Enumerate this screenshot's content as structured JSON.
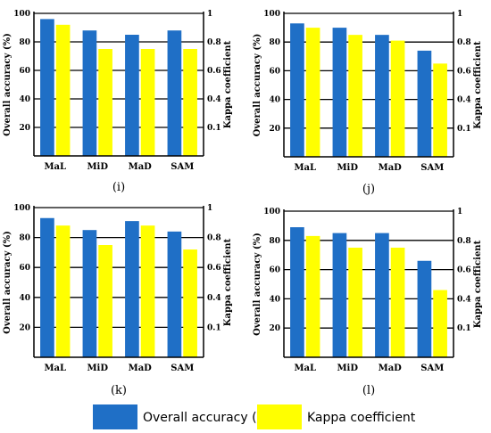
{
  "colors": {
    "oa": "#1f6fc6",
    "kappa": "#ffff00"
  },
  "legend": {
    "oa_label": "Overall accuracy (%)",
    "kappa_label": "Kappa coefficient"
  },
  "chart_data": [
    {
      "type": "bar",
      "panel_label": "(i)",
      "categories": [
        "MaL",
        "MiD",
        "MaD",
        "SAM"
      ],
      "ylabel": "Overall accuracy (%)",
      "y2label": "Kappa coefficient",
      "ylim": [
        0,
        100
      ],
      "y2lim": [
        0,
        1
      ],
      "yticks": [
        "20",
        "40",
        "60",
        "80",
        "100"
      ],
      "y2ticks": [
        "0.1",
        "0.4",
        "0.6",
        "0.8",
        "1"
      ],
      "series": [
        {
          "name": "Overall accuracy (%)",
          "values": [
            96,
            88,
            85,
            88
          ]
        },
        {
          "name": "Kappa coefficient",
          "values": [
            0.92,
            0.75,
            0.75,
            0.75
          ]
        }
      ]
    },
    {
      "type": "bar",
      "panel_label": "(j)",
      "categories": [
        "MaL",
        "MiD",
        "MaD",
        "SAM"
      ],
      "ylabel": "Overall accuracy (%)",
      "y2label": "Kappa coefficient",
      "ylim": [
        0,
        100
      ],
      "y2lim": [
        0,
        1
      ],
      "yticks": [
        "20",
        "40",
        "60",
        "80",
        "100"
      ],
      "y2ticks": [
        "0.1",
        "0.4",
        "0.6",
        "0.8",
        "1"
      ],
      "series": [
        {
          "name": "Overall accuracy (%)",
          "values": [
            93,
            90,
            85,
            74
          ]
        },
        {
          "name": "Kappa coefficient",
          "values": [
            0.9,
            0.85,
            0.81,
            0.65
          ]
        }
      ]
    },
    {
      "type": "bar",
      "panel_label": "(k)",
      "categories": [
        "MaL",
        "MiD",
        "MaD",
        "SAM"
      ],
      "ylabel": "Overall accuracy (%)",
      "y2label": "Kappa coefficient",
      "ylim": [
        0,
        100
      ],
      "y2lim": [
        0,
        1
      ],
      "yticks": [
        "20",
        "40",
        "60",
        "80",
        "100"
      ],
      "y2ticks": [
        "0.1",
        "0.4",
        "0.6",
        "0.8",
        "1"
      ],
      "series": [
        {
          "name": "Overall accuracy (%)",
          "values": [
            93,
            85,
            91,
            84
          ]
        },
        {
          "name": "Kappa coefficient",
          "values": [
            0.88,
            0.75,
            0.88,
            0.72
          ]
        }
      ]
    },
    {
      "type": "bar",
      "panel_label": "(l)",
      "categories": [
        "MaL",
        "MiD",
        "MaD",
        "SAM"
      ],
      "ylabel": "Overall accuracy (%)",
      "y2label": "Kappa coefficient",
      "ylim": [
        0,
        100
      ],
      "y2lim": [
        0,
        1
      ],
      "yticks": [
        "20",
        "40",
        "60",
        "80",
        "100"
      ],
      "y2ticks": [
        "0.1",
        "0.4",
        "0.6",
        "0.8",
        "1"
      ],
      "series": [
        {
          "name": "Overall accuracy (%)",
          "values": [
            89,
            85,
            85,
            66
          ]
        },
        {
          "name": "Kappa coefficient",
          "values": [
            0.83,
            0.75,
            0.75,
            0.46
          ]
        }
      ]
    }
  ]
}
